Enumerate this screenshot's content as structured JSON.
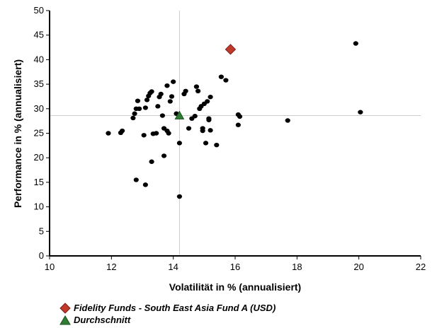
{
  "chart_data": {
    "type": "scatter",
    "xlabel": "Volatilität in % (annualisiert)",
    "ylabel": "Performance in % (annualisiert)",
    "xlim": [
      10,
      22
    ],
    "ylim": [
      0,
      50
    ],
    "xticks": [
      "10",
      "12",
      "14",
      "16",
      "18",
      "20",
      "22"
    ],
    "yticks": [
      "0",
      "5",
      "10",
      "15",
      "20",
      "25",
      "30",
      "35",
      "40",
      "45",
      "50"
    ],
    "grid": false,
    "legend_placement": "bottom-left",
    "reference_lines": {
      "x": 14.2,
      "y": 28.6
    },
    "series": [
      {
        "name": "Fidelity Funds - South East Asia Fund A (USD)",
        "marker": "diamond",
        "color": "#c0392b",
        "points": [
          [
            15.85,
            42.1
          ]
        ]
      },
      {
        "name": "Durchschnitt",
        "marker": "triangle",
        "color": "#2e7d32",
        "points": [
          [
            14.2,
            28.6
          ]
        ]
      },
      {
        "name": "",
        "marker": "dot",
        "color": "#000000",
        "points": [
          [
            11.9,
            25.0
          ],
          [
            12.3,
            25.1
          ],
          [
            12.35,
            25.5
          ],
          [
            12.7,
            28.1
          ],
          [
            12.75,
            29.0
          ],
          [
            12.8,
            30.0
          ],
          [
            12.85,
            31.6
          ],
          [
            12.9,
            30.0
          ],
          [
            12.8,
            15.5
          ],
          [
            13.05,
            24.6
          ],
          [
            13.1,
            14.5
          ],
          [
            13.1,
            30.2
          ],
          [
            13.15,
            31.8
          ],
          [
            13.2,
            32.6
          ],
          [
            13.25,
            33.2
          ],
          [
            13.3,
            33.5
          ],
          [
            13.3,
            19.2
          ],
          [
            13.35,
            24.9
          ],
          [
            13.45,
            25.0
          ],
          [
            13.5,
            30.5
          ],
          [
            13.55,
            32.4
          ],
          [
            13.6,
            33.0
          ],
          [
            13.65,
            28.6
          ],
          [
            13.7,
            26.0
          ],
          [
            13.7,
            20.4
          ],
          [
            13.8,
            25.5
          ],
          [
            13.85,
            25.0
          ],
          [
            13.8,
            34.7
          ],
          [
            13.9,
            31.5
          ],
          [
            13.95,
            32.5
          ],
          [
            14.0,
            35.5
          ],
          [
            14.1,
            29.0
          ],
          [
            14.2,
            23.0
          ],
          [
            14.2,
            12.1
          ],
          [
            14.35,
            33.0
          ],
          [
            14.4,
            33.6
          ],
          [
            14.5,
            26.0
          ],
          [
            14.6,
            28.0
          ],
          [
            14.7,
            28.5
          ],
          [
            14.75,
            34.5
          ],
          [
            14.8,
            33.6
          ],
          [
            14.85,
            30.0
          ],
          [
            14.9,
            30.5
          ],
          [
            14.95,
            26.0
          ],
          [
            14.95,
            25.5
          ],
          [
            15.0,
            31.0
          ],
          [
            15.05,
            23.0
          ],
          [
            15.1,
            31.5
          ],
          [
            15.15,
            28.0
          ],
          [
            15.15,
            27.7
          ],
          [
            15.2,
            25.6
          ],
          [
            15.2,
            32.4
          ],
          [
            15.4,
            22.6
          ],
          [
            15.55,
            36.5
          ],
          [
            15.7,
            35.8
          ],
          [
            16.1,
            28.8
          ],
          [
            16.15,
            28.4
          ],
          [
            16.1,
            26.7
          ],
          [
            17.7,
            27.6
          ],
          [
            19.9,
            43.3
          ],
          [
            20.05,
            29.3
          ]
        ]
      }
    ]
  }
}
